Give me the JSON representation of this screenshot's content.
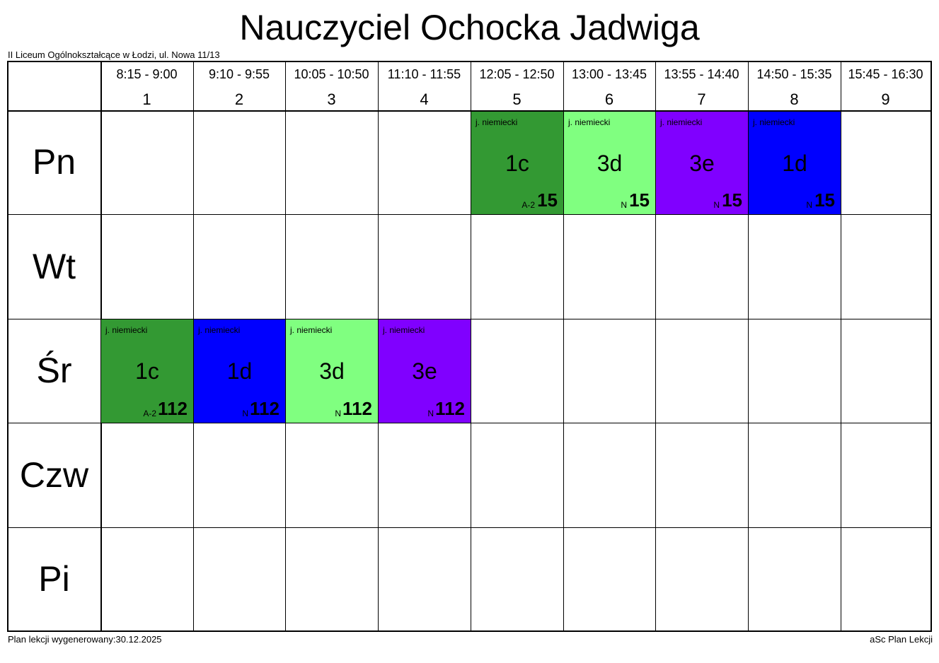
{
  "title": "Nauczyciel Ochocka Jadwiga",
  "school": "II Liceum Ogólnokształcące w Łodzi, ul. Nowa 11/13",
  "footer": {
    "generated": "Plan lekcji wygenerowany:30.12.2025",
    "app": "aSc Plan Lekcji"
  },
  "periods": [
    {
      "time": "8:15 - 9:00",
      "num": "1"
    },
    {
      "time": "9:10 - 9:55",
      "num": "2"
    },
    {
      "time": "10:05 - 10:50",
      "num": "3"
    },
    {
      "time": "11:10 - 11:55",
      "num": "4"
    },
    {
      "time": "12:05 - 12:50",
      "num": "5"
    },
    {
      "time": "13:00 - 13:45",
      "num": "6"
    },
    {
      "time": "13:55 - 14:40",
      "num": "7"
    },
    {
      "time": "14:50 - 15:35",
      "num": "8"
    },
    {
      "time": "15:45 - 16:30",
      "num": "9"
    }
  ],
  "days": [
    "Pn",
    "Wt",
    "Śr",
    "Czw",
    "Pi"
  ],
  "colors": {
    "green_dark": "#339933",
    "green_light": "#80ff80",
    "purple": "#8000ff",
    "blue": "#0000ff"
  },
  "lessons": [
    {
      "day": 0,
      "period": 5,
      "subject": "j. niemiecki",
      "class": "1c",
      "group": "A-2",
      "room": "15",
      "color": "#339933"
    },
    {
      "day": 0,
      "period": 6,
      "subject": "j. niemiecki",
      "class": "3d",
      "group": "N",
      "room": "15",
      "color": "#80ff80"
    },
    {
      "day": 0,
      "period": 7,
      "subject": "j. niemiecki",
      "class": "3e",
      "group": "N",
      "room": "15",
      "color": "#8000ff"
    },
    {
      "day": 0,
      "period": 8,
      "subject": "j. niemiecki",
      "class": "1d",
      "group": "N",
      "room": "15",
      "color": "#0000ff"
    },
    {
      "day": 2,
      "period": 1,
      "subject": "j. niemiecki",
      "class": "1c",
      "group": "A-2",
      "room": "112",
      "color": "#339933"
    },
    {
      "day": 2,
      "period": 2,
      "subject": "j. niemiecki",
      "class": "1d",
      "group": "N",
      "room": "112",
      "color": "#0000ff"
    },
    {
      "day": 2,
      "period": 3,
      "subject": "j. niemiecki",
      "class": "3d",
      "group": "N",
      "room": "112",
      "color": "#80ff80"
    },
    {
      "day": 2,
      "period": 4,
      "subject": "j. niemiecki",
      "class": "3e",
      "group": "N",
      "room": "112",
      "color": "#8000ff"
    }
  ]
}
